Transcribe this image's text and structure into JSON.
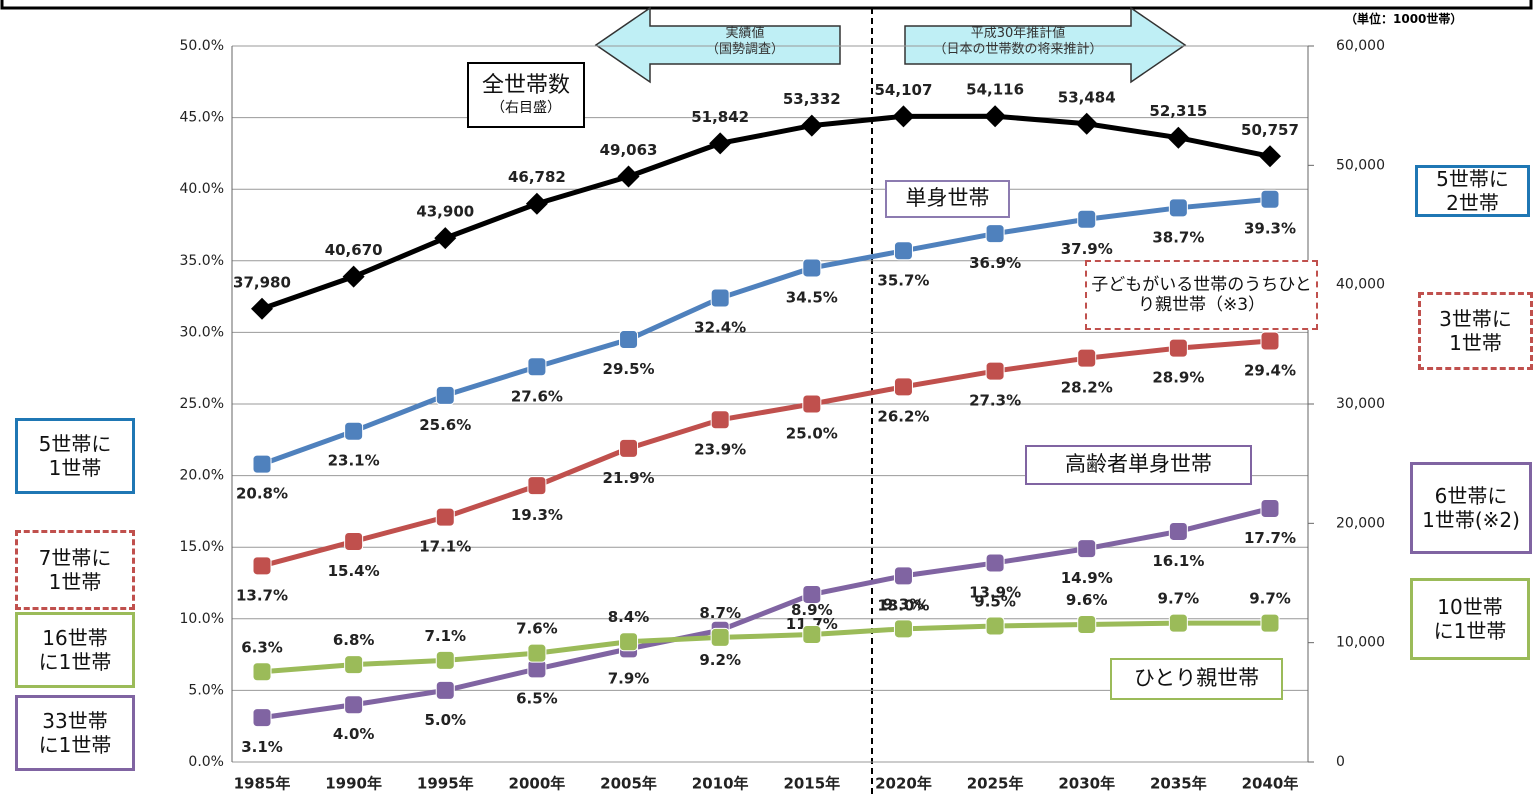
{
  "chart_data": {
    "type": "line",
    "unit_note": "（単位：1000世帯）",
    "periods": [
      {
        "text": "実績値\n（国勢調査）",
        "direction": "left"
      },
      {
        "text": "平成30年推計値\n（日本の世帯数の将来推計）",
        "direction": "right"
      }
    ],
    "categories": [
      "1985年",
      "1990年",
      "1995年",
      "2000年",
      "2005年",
      "2010年",
      "2015年",
      "2020年",
      "2025年",
      "2030年",
      "2035年",
      "2040年"
    ],
    "ylim": [
      0,
      50
    ],
    "yticks": [
      {
        "value": 0,
        "label": "0.0%"
      },
      {
        "value": 5,
        "label": "5.0%"
      },
      {
        "value": 10,
        "label": "10.0%"
      },
      {
        "value": 15,
        "label": "15.0%"
      },
      {
        "value": 20,
        "label": "20.0%"
      },
      {
        "value": 25,
        "label": "25.0%"
      },
      {
        "value": 30,
        "label": "30.0%"
      },
      {
        "value": 35,
        "label": "35.0%"
      },
      {
        "value": 40,
        "label": "40.0%"
      },
      {
        "value": 45,
        "label": "45.0%"
      },
      {
        "value": 50,
        "label": "50.0%"
      }
    ],
    "y2lim": [
      0,
      60000
    ],
    "y2ticks": [
      0,
      {
        "value": 10000,
        "label": "10,000"
      },
      {
        "value": 20000,
        "label": "20,000"
      },
      {
        "value": 30000,
        "label": "30,000"
      },
      {
        "value": 40000,
        "label": "40,000"
      },
      {
        "value": 50000,
        "label": "50,000"
      },
      {
        "value": 60000,
        "label": "60,000"
      }
    ],
    "grid": true,
    "series": [
      {
        "name": "全世帯数",
        "note": "（右目盛）",
        "axis": "y2",
        "color": "#000000",
        "marker": "diamond",
        "values": [
          37980,
          40670,
          43900,
          46782,
          49063,
          51842,
          53332,
          54107,
          54116,
          53484,
          52315,
          50757
        ],
        "value_labels": [
          "37,980",
          "40,670",
          "43,900",
          "46,782",
          "49,063",
          "51,842",
          "53,332",
          "54,107",
          "54,116",
          "53,484",
          "52,315",
          "50,757"
        ]
      },
      {
        "name": "単身世帯",
        "color": "#4f81bd",
        "marker": "square",
        "values": [
          20.8,
          23.1,
          25.6,
          27.6,
          29.5,
          32.4,
          34.5,
          35.7,
          36.9,
          37.9,
          38.7,
          39.3
        ],
        "value_labels": [
          "20.8%",
          "23.1%",
          "25.6%",
          "27.6%",
          "29.5%",
          "32.4%",
          "34.5%",
          "35.7%",
          "36.9%",
          "37.9%",
          "38.7%",
          "39.3%"
        ]
      },
      {
        "name": "子どもがいる世帯のうちひとり親世帯（※3）",
        "color": "#c0504d",
        "marker": "square",
        "values": [
          13.7,
          15.4,
          17.1,
          19.3,
          21.9,
          23.9,
          25.0,
          26.2,
          27.3,
          28.2,
          28.9,
          29.4
        ],
        "value_labels": [
          "13.7%",
          "15.4%",
          "17.1%",
          "19.3%",
          "21.9%",
          "23.9%",
          "25.0%",
          "26.2%",
          "27.3%",
          "28.2%",
          "28.9%",
          "29.4%"
        ]
      },
      {
        "name": "高齢者単身世帯",
        "color": "#8064a2",
        "marker": "square",
        "values": [
          3.1,
          4.0,
          5.0,
          6.5,
          7.9,
          9.2,
          11.7,
          13.0,
          13.9,
          14.9,
          16.1,
          17.7
        ],
        "value_labels": [
          "3.1%",
          "4.0%",
          "5.0%",
          "6.5%",
          "7.9%",
          "9.2%",
          "11.7%",
          "13.0%",
          "13.9%",
          "14.9%",
          "16.1%",
          "17.7%"
        ]
      },
      {
        "name": "ひとり親世帯",
        "color": "#9bbb59",
        "marker": "square",
        "values": [
          6.3,
          6.8,
          7.1,
          7.6,
          8.4,
          8.7,
          8.9,
          9.3,
          9.5,
          9.6,
          9.7,
          9.7
        ],
        "value_labels": [
          "6.3%",
          "6.8%",
          "7.1%",
          "7.6%",
          "8.4%",
          "8.7%",
          "8.9%",
          "9.3%",
          "9.5%",
          "9.6%",
          "9.7%",
          "9.7%"
        ]
      }
    ],
    "annotations": [
      {
        "text": "5世帯に\n2世帯",
        "color": "#1f77b4",
        "border": "solid"
      },
      {
        "text": "3世帯に\n1世帯",
        "color": "#c0504d",
        "border": "dashed"
      },
      {
        "text": "6世帯に\n1世帯(※2)",
        "color": "#8064a2",
        "border": "solid"
      },
      {
        "text": "10世帯\nに1世帯",
        "color": "#9bbb59",
        "border": "solid"
      },
      {
        "text": "5世帯に\n1世帯",
        "color": "#1f77b4",
        "border": "solid"
      },
      {
        "text": "7世帯に\n1世帯",
        "color": "#c0504d",
        "border": "dashed"
      },
      {
        "text": "16世帯\nに1世帯",
        "color": "#9bbb59",
        "border": "solid"
      },
      {
        "text": "33世帯\nに1世帯",
        "color": "#8064a2",
        "border": "solid"
      }
    ]
  }
}
